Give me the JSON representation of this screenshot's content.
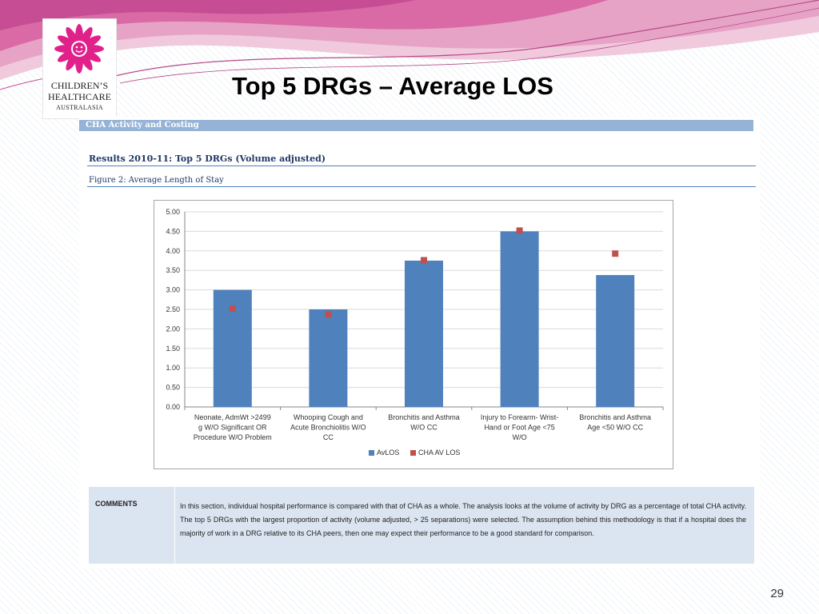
{
  "slide": {
    "title": "Top 5 DRGs – Average LOS",
    "page_number": "29"
  },
  "logo": {
    "line1": "CHILDREN’S",
    "line2": "HEALTHCARE",
    "line3": "AUSTRALASIA"
  },
  "document": {
    "header": "CHA Activity and Costing",
    "subtitle": "Results 2010-11: Top 5 DRGs (Volume adjusted)",
    "figure_title": "Figure 2: Average Length of Stay"
  },
  "comments": {
    "label": "COMMENTS",
    "text": "In this section, individual hospital performance is compared with that of CHA as a whole. The analysis looks at the volume of activity by DRG as a percentage of total CHA activity. The top 5 DRGs with the largest proportion of activity (volume adjusted, > 25 separations) were selected. The assumption behind this methodology is that if a hospital does the majority of work in a DRG relative to its CHA peers, then one may expect their performance to be a good standard for comparison."
  },
  "colors": {
    "bar": "#4f81bd",
    "marker": "#c0504d",
    "header_band": "#95b3d7",
    "comments_bg": "#dbe5f1",
    "brand_pink": "#e0218a"
  },
  "chart_data": {
    "type": "bar",
    "categories": [
      [
        "Neonate, AdmWt >2499",
        "g W/O Significant OR",
        "Procedure W/O Problem"
      ],
      [
        "Whooping Cough and",
        "Acute Bronchiolitis W/O",
        "CC"
      ],
      [
        "Bronchitis and Asthma",
        "W/O CC"
      ],
      [
        "Injury to Forearm- Wrist-",
        "Hand or Foot Age <75",
        "W/O"
      ],
      [
        "Bronchitis and Asthma",
        "Age <50 W/O CC"
      ]
    ],
    "series": [
      {
        "name": "AvLOS",
        "kind": "bar",
        "color": "#4f81bd",
        "values": [
          3.0,
          2.5,
          3.75,
          4.5,
          3.38
        ]
      },
      {
        "name": "CHA AV LOS",
        "kind": "marker",
        "color": "#c0504d",
        "values": [
          2.52,
          2.37,
          3.76,
          4.52,
          3.93
        ]
      }
    ],
    "ylim": [
      0,
      5
    ],
    "yticks": [
      "0.00",
      "0.50",
      "1.00",
      "1.50",
      "2.00",
      "2.50",
      "3.00",
      "3.50",
      "4.00",
      "4.50",
      "5.00"
    ],
    "grid": true,
    "legend_position": "bottom"
  }
}
